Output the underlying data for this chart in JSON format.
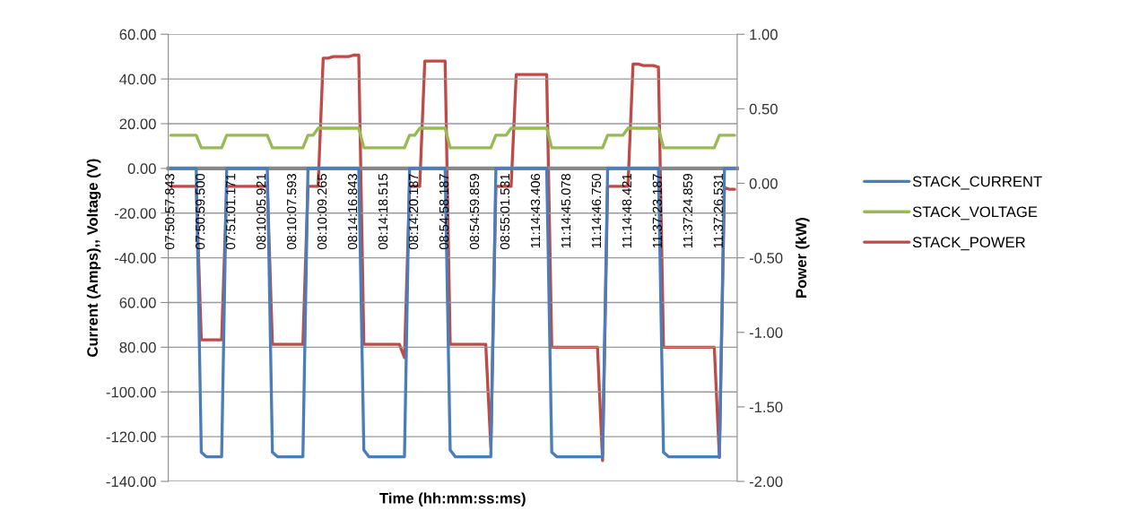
{
  "chart_data": {
    "type": "line",
    "xlabel": "Time (hh:mm:ss:ms)",
    "ylabel": "Current (Amps),, Voltage (V)",
    "y2label": "Power (kW)",
    "categories": [
      "07:50:57.843",
      null,
      null,
      null,
      null,
      null,
      "07:50:59.500",
      null,
      null,
      null,
      null,
      null,
      "07:51:01.171",
      null,
      null,
      null,
      null,
      null,
      "08:10:05.921",
      null,
      null,
      null,
      null,
      null,
      "08:10:07.593",
      null,
      null,
      null,
      null,
      null,
      "08:10:09.265",
      null,
      null,
      null,
      null,
      null,
      "08:14:16.843",
      null,
      null,
      null,
      null,
      null,
      "08:14:18.515",
      null,
      null,
      null,
      null,
      null,
      "08:14:20.187",
      null,
      null,
      null,
      null,
      null,
      "08:54:58.187",
      null,
      null,
      null,
      null,
      null,
      "08:54:59.859",
      null,
      null,
      null,
      null,
      null,
      "08:55:01.531",
      null,
      null,
      null,
      null,
      null,
      "11:14:43.406",
      null,
      null,
      null,
      null,
      null,
      "11:14:45.078",
      null,
      null,
      null,
      null,
      null,
      "11:14:46.750",
      null,
      null,
      null,
      null,
      null,
      "11:14:48.421",
      null,
      null,
      null,
      null,
      null,
      "11:37:23.187",
      null,
      null,
      null,
      null,
      null,
      "11:37:24.859",
      null,
      null,
      null,
      null,
      null,
      "11:37:26.531",
      null,
      null,
      null
    ],
    "ylim": [
      -140,
      60
    ],
    "yticks": [
      {
        "value": 60,
        "label": "60.00"
      },
      {
        "value": 40,
        "label": "40.00"
      },
      {
        "value": 20,
        "label": "20.00"
      },
      {
        "value": 0,
        "label": "0.00"
      },
      {
        "value": -20,
        "label": "-20.00"
      },
      {
        "value": -40,
        "label": "-40.00"
      },
      {
        "value": -60,
        "label": "60.00"
      },
      {
        "value": -80,
        "label": "80.00"
      },
      {
        "value": -100,
        "label": "-100.00"
      },
      {
        "value": -120,
        "label": "-120.00"
      },
      {
        "value": -140,
        "label": "-140.00"
      }
    ],
    "y2lim": [
      -2,
      1
    ],
    "y2ticks": [
      {
        "value": 1,
        "label": "1.00"
      },
      {
        "value": 0.5,
        "label": "0.50"
      },
      {
        "value": 0,
        "label": "0.00"
      },
      {
        "value": -0.5,
        "label": "-0.50"
      },
      {
        "value": -1,
        "label": "-1.00"
      },
      {
        "value": -1.5,
        "label": "-1.50"
      },
      {
        "value": -2,
        "label": "-2.00"
      }
    ],
    "grid": "y",
    "legend": "right",
    "marker": "none",
    "line_style": "solid",
    "series": [
      {
        "name": "STACK_CURRENT",
        "color": "#4a7ebb",
        "values": [
          0,
          0,
          0,
          0,
          0,
          0,
          -127,
          -129,
          -129,
          -129,
          -129,
          0,
          0,
          0,
          0,
          0,
          0,
          0,
          0,
          0,
          -127,
          -129,
          -129,
          -129,
          -129,
          -129,
          -129,
          0,
          0,
          0,
          0,
          0,
          0,
          0,
          0,
          0,
          0,
          0,
          -126,
          -129,
          -129,
          -129,
          -129,
          -129,
          -129,
          -129,
          -129,
          0,
          0,
          0,
          0,
          0,
          0,
          0,
          0,
          -126,
          -129,
          -129,
          -129,
          -129,
          -129,
          -129,
          -129,
          -129,
          0,
          0,
          0,
          0,
          0,
          0,
          0,
          0,
          0,
          0,
          0,
          -127,
          -129,
          -129,
          -129,
          -129,
          -129,
          -129,
          -129,
          -129,
          -129,
          -129,
          0,
          0,
          0,
          0,
          0,
          0,
          0,
          0,
          0,
          0,
          0,
          -127,
          -129,
          -129,
          -129,
          -129,
          -129,
          -129,
          -129,
          -129,
          -129,
          -129,
          -129,
          0,
          0,
          0
        ]
      },
      {
        "name": "STACK_VOLTAGE",
        "color": "#98b954",
        "values": [
          14.8,
          14.8,
          14.8,
          14.8,
          14.8,
          14.8,
          9.2,
          9.2,
          9.2,
          9.2,
          9.2,
          14.8,
          14.8,
          14.8,
          14.8,
          14.8,
          14.8,
          14.8,
          14.8,
          14.8,
          9.2,
          9.2,
          9.2,
          9.2,
          9.2,
          9.2,
          9.2,
          14.8,
          14.8,
          18,
          18,
          18,
          18,
          18,
          18,
          18,
          18,
          18,
          9.2,
          9.2,
          9.2,
          9.2,
          9.2,
          9.2,
          9.2,
          9.2,
          9.2,
          14.8,
          14.8,
          18,
          18,
          18,
          18,
          18,
          18,
          9.2,
          9.2,
          9.2,
          9.2,
          9.2,
          9.2,
          9.2,
          9.2,
          9.2,
          14.8,
          14.8,
          14.8,
          18,
          18,
          18,
          18,
          18,
          18,
          18,
          18,
          9.2,
          9.2,
          9.2,
          9.2,
          9.2,
          9.2,
          9.2,
          9.2,
          9.2,
          9.2,
          9.2,
          14.8,
          14.8,
          14.8,
          14.8,
          18,
          18,
          18,
          18,
          18,
          18,
          18,
          9.2,
          9.2,
          9.2,
          9.2,
          9.2,
          9.2,
          9.2,
          9.2,
          9.2,
          9.2,
          9.2,
          14.8,
          14.8,
          14.8,
          14.8
        ]
      },
      {
        "name": "STACK_POWER",
        "color": "#be4b48",
        "axis": "y2",
        "values": [
          -0.02,
          -0.02,
          -0.02,
          -0.02,
          -0.02,
          -0.02,
          -1.05,
          -1.05,
          -1.05,
          -1.05,
          -1.05,
          -0.02,
          -0.02,
          -0.02,
          -0.02,
          -0.02,
          -0.02,
          -0.02,
          -0.02,
          -0.02,
          -1.08,
          -1.08,
          -1.08,
          -1.08,
          -1.08,
          -1.08,
          -1.08,
          -0.02,
          -0.02,
          -0.02,
          0.84,
          0.84,
          0.85,
          0.85,
          0.85,
          0.85,
          0.86,
          0.86,
          -1.08,
          -1.08,
          -1.08,
          -1.08,
          -1.08,
          -1.08,
          -1.08,
          -1.08,
          -1.17,
          -0.02,
          -0.02,
          -0.02,
          0.82,
          0.82,
          0.82,
          0.82,
          0.82,
          -1.08,
          -1.08,
          -1.08,
          -1.08,
          -1.08,
          -1.08,
          -1.08,
          -1.08,
          -1.77,
          -0.02,
          -0.02,
          -0.02,
          -0.02,
          0.73,
          0.73,
          0.73,
          0.73,
          0.73,
          0.73,
          0.73,
          -1.1,
          -1.1,
          -1.1,
          -1.1,
          -1.1,
          -1.1,
          -1.1,
          -1.1,
          -1.1,
          -1.1,
          -1.86,
          -0.02,
          -0.02,
          -0.02,
          -0.02,
          -0.02,
          0.8,
          0.8,
          0.79,
          0.79,
          0.79,
          0.78,
          -1.1,
          -1.1,
          -1.1,
          -1.1,
          -1.1,
          -1.1,
          -1.1,
          -1.1,
          -1.1,
          -1.1,
          -1.1,
          -1.84,
          -0.03,
          -0.04,
          -0.04
        ]
      }
    ]
  }
}
